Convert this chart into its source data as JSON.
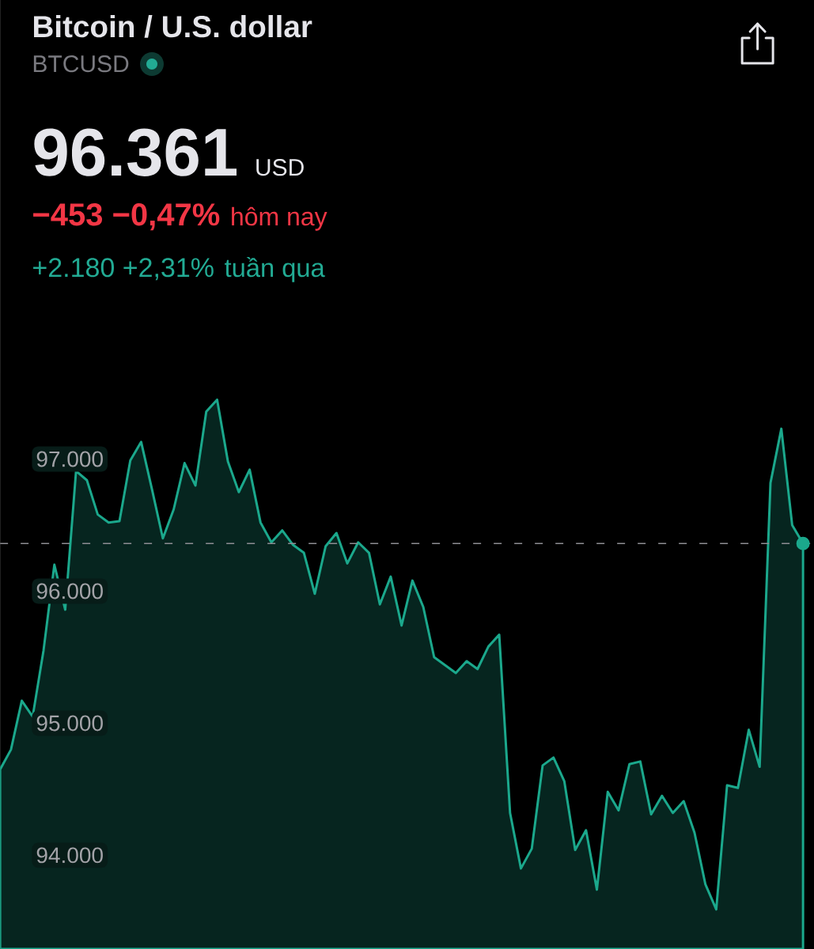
{
  "chart_data": {
    "type": "area",
    "title": "Bitcoin / U.S. dollar",
    "subtitle": "BTCUSD",
    "annotations": [
      "96.361",
      "USD",
      "−453 −0,47%",
      "hôm nay",
      "+2.180 +2,31%",
      "tuần qua"
    ],
    "categories": [
      null,
      null,
      null,
      null,
      null,
      null,
      null,
      null,
      null,
      null,
      null,
      null,
      null,
      null,
      null,
      null,
      null,
      null,
      null,
      null,
      null,
      null,
      null,
      null,
      null,
      null,
      null,
      null,
      null,
      null,
      null,
      null,
      null,
      null,
      null,
      null,
      null,
      null,
      null,
      null,
      null,
      null,
      null,
      null,
      null,
      null,
      null,
      null,
      null,
      null,
      null,
      null,
      null,
      null,
      null,
      null,
      null,
      null,
      null,
      null,
      null,
      null,
      null,
      null,
      null,
      null,
      null,
      null,
      null,
      null,
      null,
      null,
      null,
      null,
      null
    ],
    "series": [
      {
        "color": "#1ba88c",
        "values": [
          94650,
          94800,
          95170,
          95050,
          95550,
          96200,
          95860,
          96910,
          96840,
          96580,
          96520,
          96530,
          96990,
          97130,
          96770,
          96400,
          96620,
          96970,
          96800,
          97360,
          97450,
          96980,
          96750,
          96920,
          96520,
          96370,
          96460,
          96350,
          96290,
          95980,
          96340,
          96440,
          96210,
          96370,
          96290,
          95900,
          96110,
          95740,
          96080,
          95880,
          95500,
          95440,
          95380,
          95470,
          95410,
          95580,
          95670,
          94320,
          93900,
          94050,
          94680,
          94740,
          94560,
          94040,
          94190,
          93740,
          94480,
          94340,
          94690,
          94710,
          94310,
          94450,
          94320,
          94410,
          94170,
          93780,
          93590,
          94530,
          94510,
          94950,
          94670,
          96820,
          97230,
          96500,
          96361
        ]
      },
      {
        "type": "scatter",
        "color": "#1ba88c",
        "values": [
          null,
          null,
          null,
          null,
          null,
          null,
          null,
          null,
          null,
          null,
          null,
          null,
          null,
          null,
          null,
          null,
          null,
          null,
          null,
          null,
          null,
          null,
          null,
          null,
          null,
          null,
          null,
          null,
          null,
          null,
          null,
          null,
          null,
          null,
          null,
          null,
          null,
          null,
          null,
          null,
          null,
          null,
          null,
          null,
          null,
          null,
          null,
          null,
          null,
          null,
          null,
          null,
          null,
          null,
          null,
          null,
          null,
          null,
          null,
          null,
          null,
          null,
          null,
          null,
          null,
          null,
          null,
          null,
          null,
          null,
          null,
          null,
          null,
          null,
          96361
        ]
      }
    ],
    "ylim": [
      93290,
      97650
    ],
    "yticks": [
      {
        "value": 94000,
        "label": "94.000"
      },
      {
        "value": 95000,
        "label": "95.000"
      },
      {
        "value": 96000,
        "label": "96.000"
      },
      {
        "value": 97000,
        "label": "97.000"
      }
    ],
    "tick_labels": "y",
    "ref_lines": [
      {
        "axis": "y",
        "value": 96361,
        "color": "#8e8e93",
        "line_style": "dashed"
      }
    ]
  }
}
